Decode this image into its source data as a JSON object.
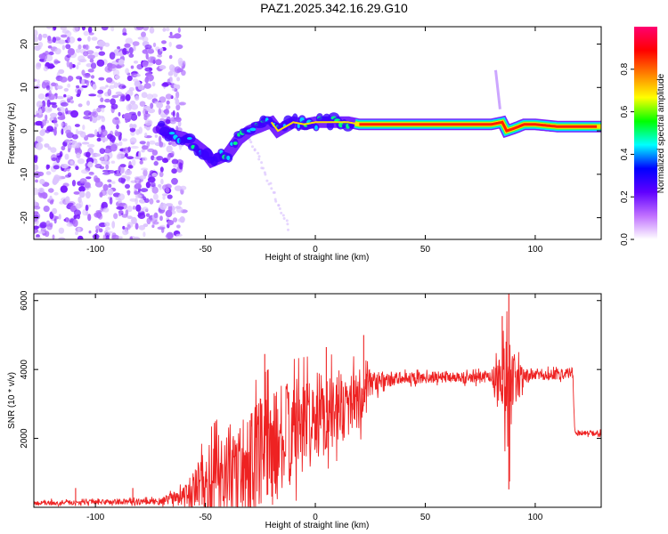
{
  "title": "PAZ1.2025.342.16.29.G10",
  "chart_data": [
    {
      "type": "heatmap",
      "panel": "spectrogram",
      "title": "PAZ1.2025.342.16.29.G10",
      "xlabel": "Height of straight line (km)",
      "ylabel": "Frequency (Hz)",
      "xlim": [
        -128,
        130
      ],
      "ylim": [
        -25,
        24
      ],
      "x_ticks": [
        -100,
        -50,
        0,
        50,
        100
      ],
      "x_tick_labels": [
        "-100",
        "-50",
        "0",
        "50",
        "100"
      ],
      "y_ticks": [
        -20,
        -10,
        0,
        10,
        20
      ],
      "y_tick_labels": [
        "-20",
        "-10",
        "0",
        "10",
        "20"
      ],
      "colorbar": {
        "label": "Normalized spectral amplitude",
        "range": [
          0,
          1
        ],
        "ticks": [
          0.0,
          0.2,
          0.4,
          0.6,
          0.8
        ],
        "tick_labels": [
          "0.0",
          "0.2",
          "0.4",
          "0.6",
          "0.8"
        ],
        "colormap": [
          "#ffffff",
          "#c070ff",
          "#6000ff",
          "#0000ff",
          "#00ffff",
          "#00ff00",
          "#ffff00",
          "#ff8000",
          "#ff0000",
          "#ff0070"
        ]
      },
      "features": {
        "noise_region_x": [
          -128,
          -60
        ],
        "ridge": [
          [
            -70,
            0.5
          ],
          [
            -65,
            -1
          ],
          [
            -60,
            -1.5
          ],
          [
            -55,
            -3
          ],
          [
            -50,
            -5
          ],
          [
            -47,
            -7
          ],
          [
            -40,
            -5.5
          ],
          [
            -35,
            -2
          ],
          [
            -30,
            0
          ],
          [
            -25,
            1
          ],
          [
            -20,
            2
          ],
          [
            -17,
            0
          ],
          [
            -10,
            2
          ],
          [
            -5,
            1.5
          ],
          [
            0,
            2
          ],
          [
            5,
            2
          ],
          [
            10,
            2
          ],
          [
            15,
            2
          ],
          [
            20,
            1.5
          ],
          [
            30,
            1.5
          ],
          [
            40,
            1.5
          ],
          [
            50,
            1.5
          ],
          [
            60,
            1.5
          ],
          [
            70,
            1.5
          ],
          [
            80,
            1.5
          ],
          [
            85,
            2
          ],
          [
            87,
            0
          ],
          [
            90,
            0.5
          ],
          [
            95,
            1.5
          ],
          [
            100,
            1.5
          ],
          [
            110,
            1
          ],
          [
            120,
            1
          ],
          [
            130,
            1
          ]
        ],
        "spike_x": 82
      }
    },
    {
      "type": "line",
      "panel": "snr",
      "xlabel": "Height of straight line (km)",
      "ylabel": "SNR (10 * v/v)",
      "xlim": [
        -128,
        130
      ],
      "ylim": [
        0,
        6200
      ],
      "x_ticks": [
        -100,
        -50,
        0,
        50,
        100
      ],
      "x_tick_labels": [
        "-100",
        "-50",
        "0",
        "50",
        "100"
      ],
      "y_ticks": [
        2000,
        4000,
        6000
      ],
      "y_tick_labels": [
        "2000",
        "4000",
        "6000"
      ],
      "color": "#ee2222",
      "envelope": {
        "x": [
          -128,
          -110,
          -90,
          -70,
          -60,
          -55,
          -50,
          -40,
          -30,
          -20,
          -10,
          0,
          10,
          20,
          25,
          30,
          40,
          50,
          60,
          70,
          80,
          85,
          88,
          90,
          95,
          100,
          110,
          117,
          118,
          120,
          130
        ],
        "mean": [
          120,
          140,
          160,
          170,
          300,
          500,
          700,
          1000,
          1300,
          1700,
          2200,
          2600,
          2900,
          3100,
          3500,
          3700,
          3750,
          3750,
          3800,
          3750,
          3800,
          3700,
          3200,
          3600,
          3800,
          3850,
          3850,
          3900,
          2200,
          2150,
          2150
        ],
        "amplitude": [
          60,
          70,
          80,
          100,
          300,
          600,
          1000,
          1400,
          1600,
          1700,
          1500,
          1300,
          1100,
          900,
          500,
          250,
          180,
          170,
          170,
          170,
          200,
          900,
          2000,
          900,
          250,
          180,
          160,
          160,
          80,
          80,
          80
        ]
      },
      "spikes": [
        {
          "x": -120,
          "y": 250
        },
        {
          "x": -109,
          "y": 560
        },
        {
          "x": -83,
          "y": 560
        },
        {
          "x": -23,
          "y": 4450
        },
        {
          "x": 5,
          "y": 4650
        },
        {
          "x": 22,
          "y": 5000
        },
        {
          "x": 85,
          "y": 5550
        },
        {
          "x": 88,
          "y": 6200
        },
        {
          "x": 88,
          "y": 520
        }
      ]
    }
  ]
}
